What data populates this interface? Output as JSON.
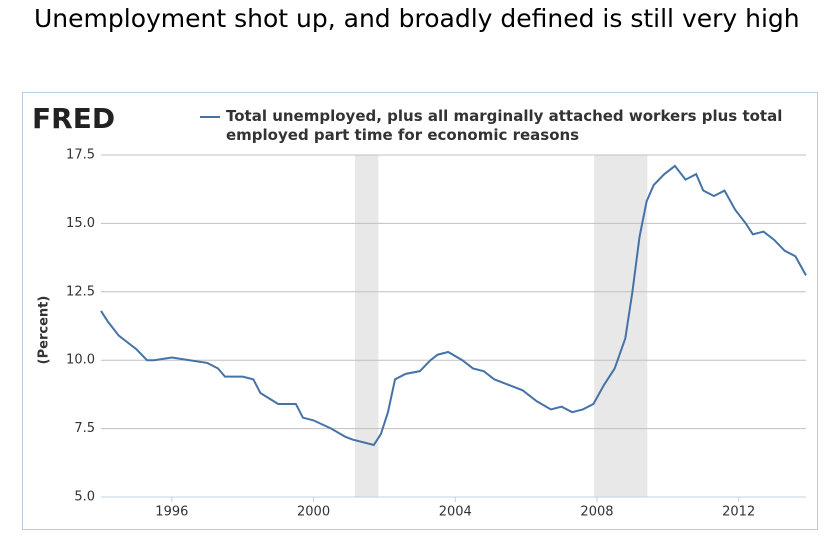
{
  "title": "Unemployment shot up, and broadly defined is still very high",
  "chart_data": {
    "type": "line",
    "logo": "FRED",
    "ylabel": "(Percent)",
    "xlim": [
      1994,
      2013.9
    ],
    "xticks": [
      1996,
      2000,
      2004,
      2008,
      2012
    ],
    "ylim": [
      5,
      17.5
    ],
    "yticks": [
      {
        "value": 5,
        "label": "5.0"
      },
      7.5,
      {
        "value": 10,
        "label": "10.0"
      },
      12.5,
      {
        "value": 15,
        "label": "15.0"
      },
      17.5
    ],
    "grid": true,
    "recessions": [
      [
        2001.17,
        2001.83
      ],
      [
        2007.92,
        2009.42
      ]
    ],
    "x": [
      1994.0,
      1994.2,
      1994.5,
      1995.0,
      1995.3,
      1995.5,
      1996.0,
      1996.5,
      1997.0,
      1997.3,
      1997.5,
      1998.0,
      1998.3,
      1998.5,
      1999.0,
      1999.5,
      1999.7,
      2000.0,
      2000.5,
      2000.9,
      2001.1,
      2001.4,
      2001.7,
      2001.9,
      2002.1,
      2002.3,
      2002.6,
      2003.0,
      2003.3,
      2003.5,
      2003.8,
      2004.2,
      2004.5,
      2004.8,
      2005.1,
      2005.5,
      2005.9,
      2006.3,
      2006.7,
      2007.0,
      2007.3,
      2007.6,
      2007.9,
      2008.2,
      2008.5,
      2008.8,
      2009.0,
      2009.2,
      2009.4,
      2009.6,
      2009.9,
      2010.2,
      2010.5,
      2010.8,
      2011.0,
      2011.3,
      2011.6,
      2011.9,
      2012.2,
      2012.4,
      2012.7,
      2013.0,
      2013.3,
      2013.6,
      2013.9
    ],
    "series": [
      {
        "name": "Total unemployed, plus all marginally attached workers plus total employed part time for economic reasons",
        "color": "#4572a7",
        "values": [
          11.8,
          11.4,
          10.9,
          10.4,
          10.0,
          10.0,
          10.1,
          10.0,
          9.9,
          9.7,
          9.4,
          9.4,
          9.3,
          8.8,
          8.4,
          8.4,
          7.9,
          7.8,
          7.5,
          7.2,
          7.1,
          7.0,
          6.9,
          7.3,
          8.1,
          9.3,
          9.5,
          9.6,
          10.0,
          10.2,
          10.3,
          10.0,
          9.7,
          9.6,
          9.3,
          9.1,
          8.9,
          8.5,
          8.2,
          8.3,
          8.1,
          8.2,
          8.4,
          9.1,
          9.7,
          10.8,
          12.5,
          14.5,
          15.8,
          16.4,
          16.8,
          17.1,
          16.6,
          16.8,
          16.2,
          16.0,
          16.2,
          15.5,
          15.0,
          14.6,
          14.7,
          14.4,
          14.0,
          13.8,
          13.1
        ]
      }
    ]
  }
}
